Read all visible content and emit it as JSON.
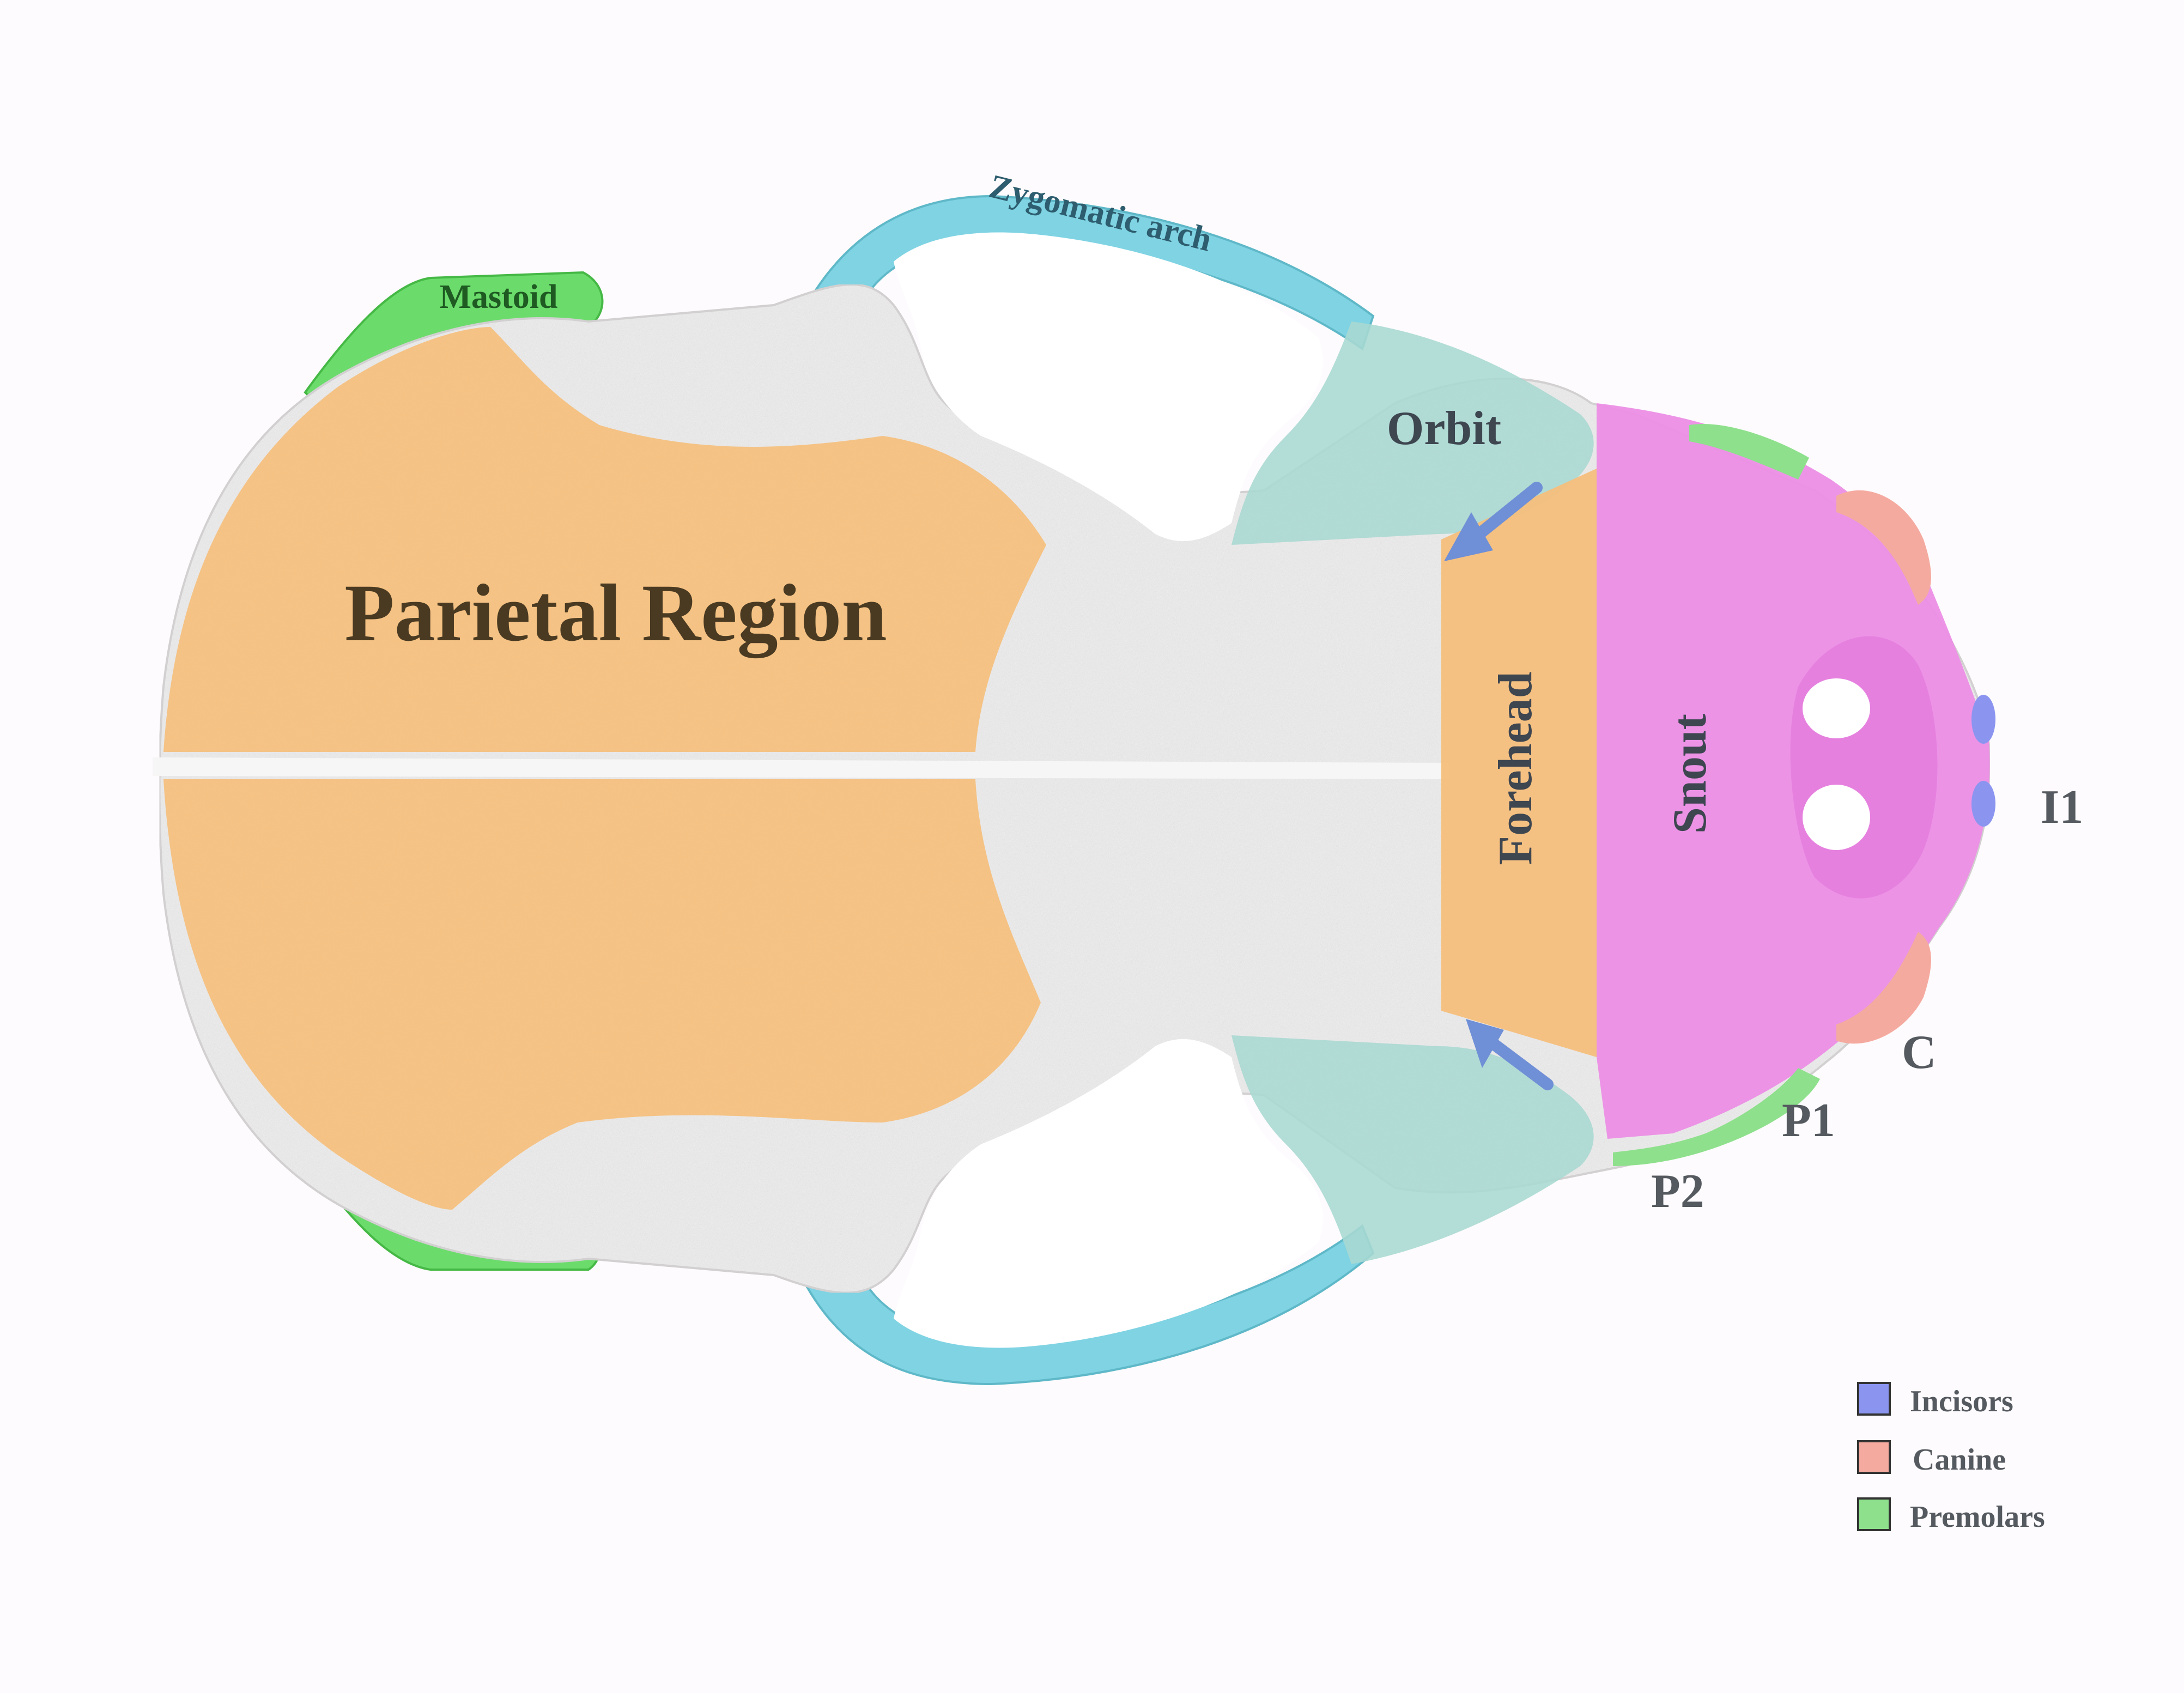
{
  "diagram": {
    "regions": {
      "parietal": {
        "label": "Parietal Region",
        "color": "#f5bf7c"
      },
      "forehead": {
        "label": "Forehead",
        "color": "#f5bf7c"
      },
      "snout": {
        "label": "Snout",
        "color": "#ec8ee6"
      },
      "orbit": {
        "label": "Orbit",
        "color": "#a9d8d2"
      },
      "zygomatic_arch": {
        "label": "Zygomatic arch",
        "color": "#7fd3e3"
      },
      "mastoid": {
        "label": "Mastoid",
        "color": "#6bdc6b"
      }
    },
    "teeth": {
      "i1": "I1",
      "c": "C",
      "p1": "P1",
      "p2": "P2"
    },
    "arrows": {
      "color": "#6f8fd6"
    },
    "bone_color": "#f2f1f1"
  },
  "legend": {
    "items": [
      {
        "label": "Incisors",
        "color": "#8b95f0"
      },
      {
        "label": "Canine",
        "color": "#f5aaa0"
      },
      {
        "label": "Premolars",
        "color": "#8ee08c"
      }
    ]
  }
}
